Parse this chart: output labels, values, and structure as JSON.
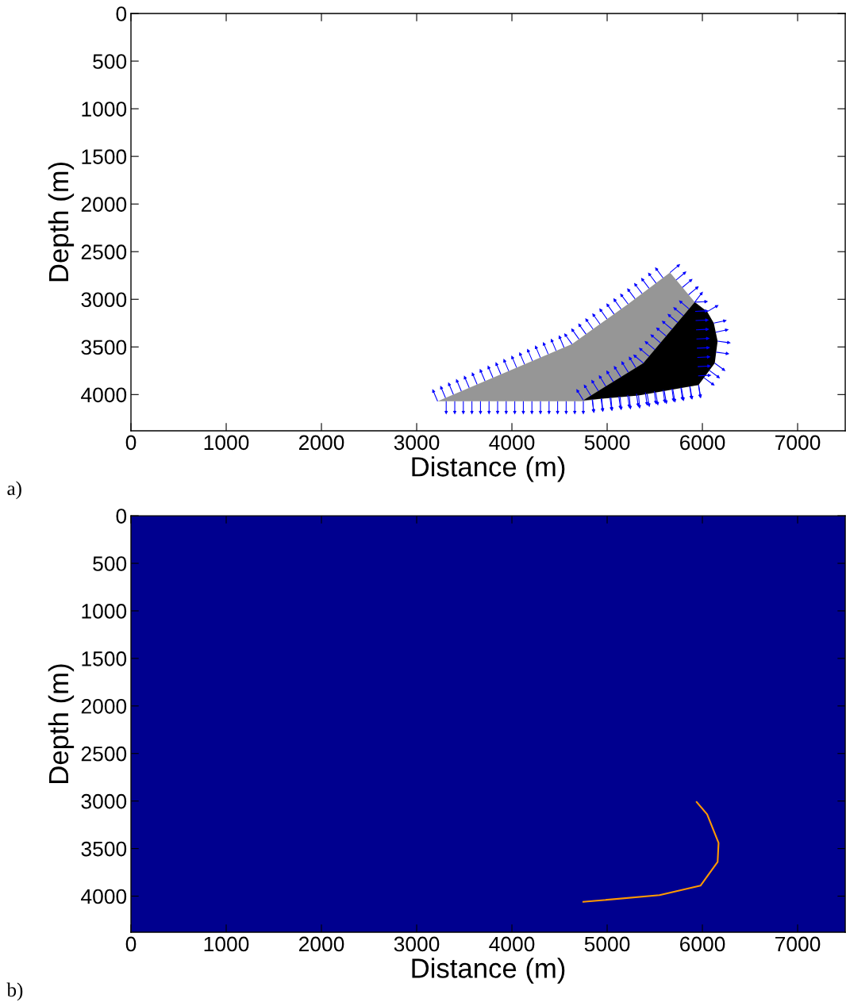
{
  "chart_data": [
    {
      "type": "area",
      "xlabel": "Distance (m)",
      "ylabel": "Depth (m)",
      "xlim": [
        0,
        7500
      ],
      "ylim": [
        4380,
        0
      ],
      "xticks": [
        0,
        1000,
        2000,
        3000,
        4000,
        5000,
        6000,
        7000
      ],
      "yticks": [
        0,
        500,
        1000,
        1500,
        2000,
        2500,
        3000,
        3500,
        4000
      ],
      "series": [
        {
          "color": "#969696",
          "x": [
            3220,
            4630,
            5220,
            5660,
            5920,
            5960,
            4750
          ],
          "values": [
            4070,
            3470,
            3050,
            2720,
            3030,
            3900,
            4070
          ]
        },
        {
          "color": "#000000",
          "x": [
            4750,
            5380,
            5920,
            6050,
            6120,
            6160,
            6130,
            5960,
            5330
          ],
          "values": [
            4060,
            3670,
            3030,
            3130,
            3250,
            3440,
            3670,
            3900,
            4010
          ]
        }
      ],
      "annotations": [
        "a)"
      ]
    },
    {
      "type": "line",
      "xlabel": "Distance (m)",
      "ylabel": "Depth (m)",
      "xlim": [
        0,
        7500
      ],
      "ylim": [
        4380,
        0
      ],
      "xticks": [
        0,
        1000,
        2000,
        3000,
        4000,
        5000,
        6000,
        7000
      ],
      "yticks": [
        0,
        500,
        1000,
        1500,
        2000,
        2500,
        3000,
        3500,
        4000
      ],
      "bands": [
        {
          "axis": "y",
          "from": 0,
          "to": 4380,
          "color": "#00008f"
        }
      ],
      "series": [
        {
          "color": "#ff9900",
          "x": [
            5940,
            6050,
            6170,
            6160,
            5980,
            5550,
            4750
          ],
          "values": [
            3010,
            3140,
            3440,
            3640,
            3890,
            3990,
            4060
          ]
        }
      ],
      "annotations": [
        "b)"
      ]
    }
  ]
}
